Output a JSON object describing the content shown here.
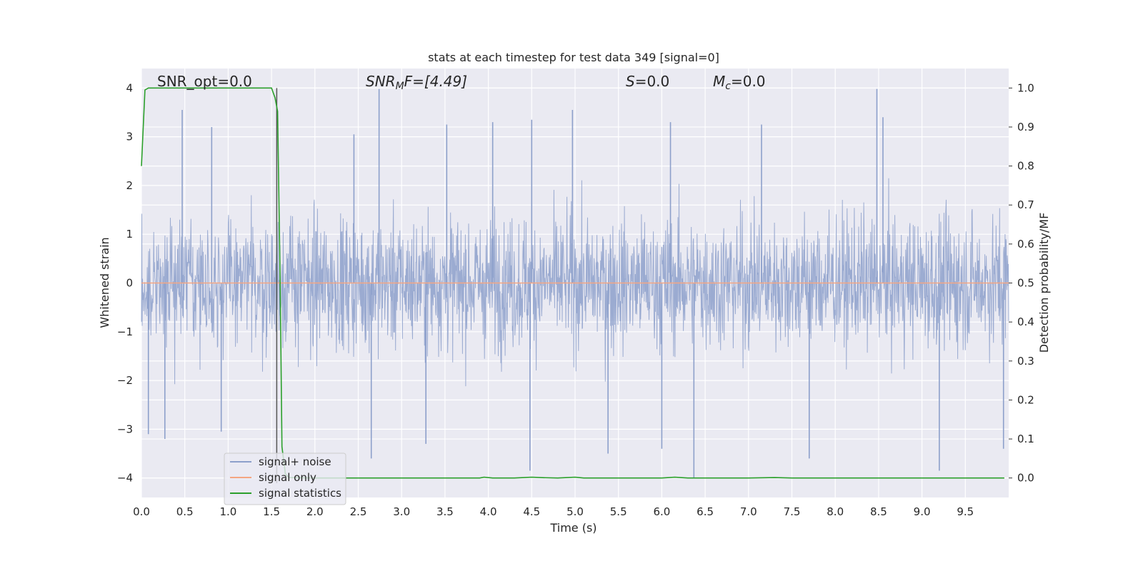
{
  "chart_data": {
    "type": "line",
    "title": "stats at each timestep for test data 349 [signal=0]",
    "xlabel": "Time (s)",
    "ylabel_left": "Whitened strain",
    "ylabel_right": "Detection probability/MF",
    "xlim": [
      0.0,
      10.0
    ],
    "ylim_left": [
      -4.4,
      4.4
    ],
    "ylim_right": [
      -0.05,
      1.05
    ],
    "x_ticks": [
      "0.0",
      "0.5",
      "1.0",
      "1.5",
      "2.0",
      "2.5",
      "3.0",
      "3.5",
      "4.0",
      "4.5",
      "5.0",
      "5.5",
      "6.0",
      "6.5",
      "7.0",
      "7.5",
      "8.0",
      "8.5",
      "9.0",
      "9.5"
    ],
    "y_left_ticks": [
      "4",
      "3",
      "2",
      "1",
      "0",
      "−1",
      "−2",
      "−3",
      "−4"
    ],
    "y_right_ticks": [
      "1.0",
      "0.9",
      "0.8",
      "0.7",
      "0.6",
      "0.5",
      "0.4",
      "0.3",
      "0.2",
      "0.1",
      "0.0"
    ],
    "grid": true,
    "legend_position": "lower-left",
    "annotations": {
      "snr_opt": "SNR_opt=0.0",
      "snr_mf_prefix": "SNR",
      "snr_mf_sub": "M",
      "snr_mf_suffix": "F=[4.49]",
      "s_symbol": "S",
      "s_value": "=0.0",
      "mc_symbol": "M",
      "mc_sub": "c",
      "mc_value": "=0.0"
    },
    "vertical_marker_x": 1.56,
    "series": [
      {
        "name": "signal+ noise",
        "color": "#8da0cb",
        "axis": "left",
        "description_values": "dense noise trace, sample rate 2048 Hz, envelope approx ±2.5 with spikes to ±4",
        "peaks": [
          {
            "x": 0.47,
            "y": 3.55
          },
          {
            "x": 0.81,
            "y": 3.2
          },
          {
            "x": 2.45,
            "y": 3.05
          },
          {
            "x": 2.74,
            "y": 3.98
          },
          {
            "x": 3.52,
            "y": 3.25
          },
          {
            "x": 4.05,
            "y": 3.3
          },
          {
            "x": 4.5,
            "y": 3.35
          },
          {
            "x": 4.97,
            "y": 3.55
          },
          {
            "x": 6.1,
            "y": 3.3
          },
          {
            "x": 7.15,
            "y": 3.25
          },
          {
            "x": 8.48,
            "y": 3.98
          },
          {
            "x": 8.55,
            "y": 3.4
          },
          {
            "x": 2.65,
            "y": -3.6
          },
          {
            "x": 4.48,
            "y": -3.85
          },
          {
            "x": 5.38,
            "y": -3.5
          },
          {
            "x": 6.37,
            "y": -4.0
          },
          {
            "x": 7.7,
            "y": -3.6
          },
          {
            "x": 9.2,
            "y": -3.85
          },
          {
            "x": 0.08,
            "y": -3.1
          },
          {
            "x": 0.27,
            "y": -3.2
          },
          {
            "x": 0.92,
            "y": -3.05
          },
          {
            "x": 9.94,
            "y": -3.4
          },
          {
            "x": 6.0,
            "y": -3.4
          },
          {
            "x": 3.28,
            "y": -3.3
          }
        ]
      },
      {
        "name": "signal only",
        "color": "#f4a582",
        "axis": "left",
        "x": [
          0.0,
          10.0
        ],
        "y": [
          0.0,
          0.0
        ]
      },
      {
        "name": "signal statistics",
        "color": "#2ca02c",
        "axis": "right",
        "x": [
          0.0,
          0.04,
          0.08,
          0.12,
          0.2,
          0.4,
          0.8,
          1.2,
          1.5,
          1.54,
          1.57,
          1.6,
          1.62,
          1.66,
          1.7,
          2.0,
          3.0,
          3.9,
          3.95,
          4.05,
          4.3,
          4.5,
          4.6,
          4.8,
          5.0,
          5.1,
          5.5,
          6.0,
          6.15,
          6.3,
          6.5,
          7.0,
          7.3,
          7.5,
          8.0,
          9.0,
          9.95
        ],
        "y": [
          0.8,
          0.995,
          1.0,
          1.0,
          1.0,
          1.0,
          1.0,
          1.0,
          1.0,
          0.975,
          0.94,
          0.5,
          0.08,
          0.01,
          0.001,
          0.0,
          0.0,
          0.0,
          0.002,
          0.0,
          0.0,
          0.002,
          0.001,
          0.0,
          0.002,
          0.0,
          0.0,
          0.0,
          0.002,
          0.0,
          0.0,
          0.0,
          0.001,
          0.0,
          0.0,
          0.0,
          0.0
        ]
      }
    ]
  }
}
